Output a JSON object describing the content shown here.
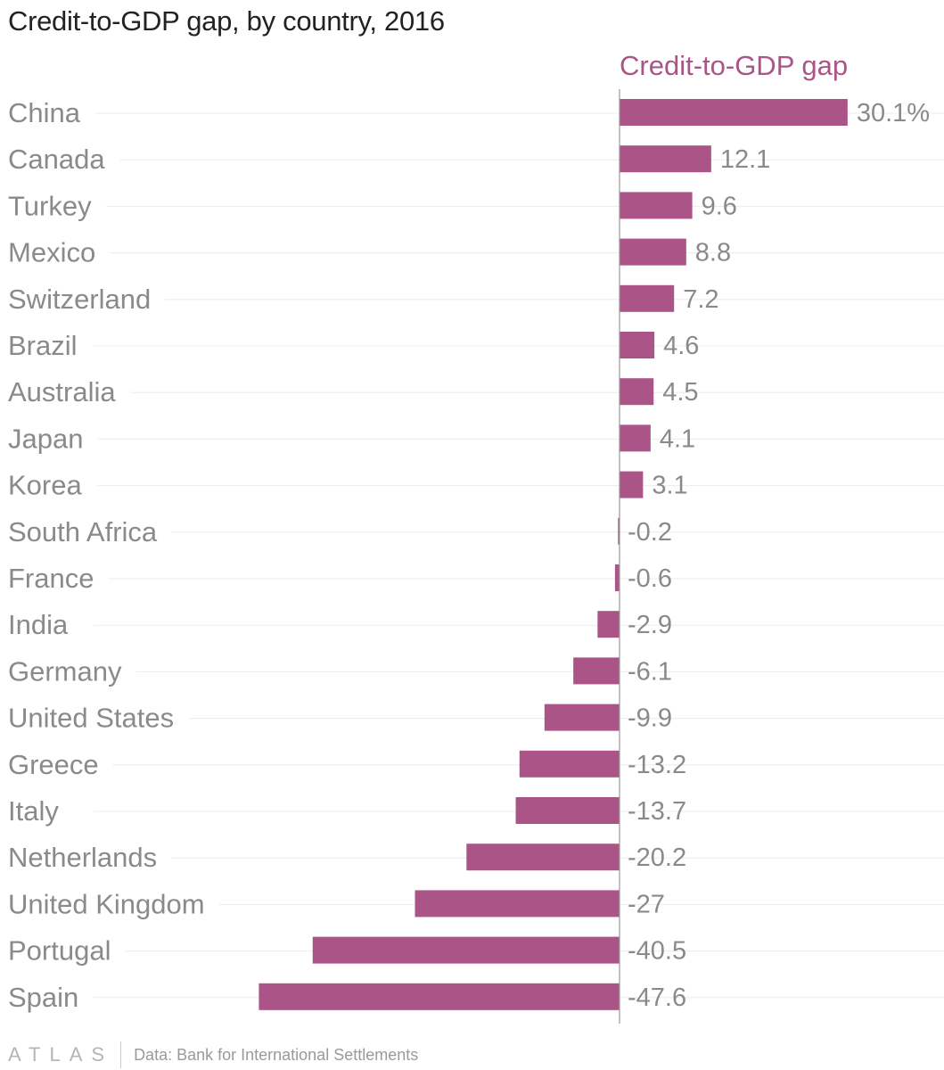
{
  "title": "Credit-to-GDP gap, by country, 2016",
  "footer": {
    "logo": "ATLAS",
    "source": "Data: Bank for International Settlements"
  },
  "colors": {
    "bar": "#ab5487",
    "label": "#8a8a8a",
    "grid": "#ececec",
    "axis": "#9a9a9a"
  },
  "chart_data": {
    "type": "bar",
    "orientation": "horizontal",
    "grid": true,
    "series": [
      {
        "name": "Credit-to-GDP gap",
        "values": [
          30.1,
          12.1,
          9.6,
          8.8,
          7.2,
          4.6,
          4.5,
          4.1,
          3.1,
          -0.2,
          -0.6,
          -2.9,
          -6.1,
          -9.9,
          -13.2,
          -13.7,
          -20.2,
          -27,
          -40.5,
          -47.6
        ]
      }
    ],
    "categories": [
      "China",
      "Canada",
      "Turkey",
      "Mexico",
      "Switzerland",
      "Brazil",
      "Australia",
      "Japan",
      "Korea",
      "South Africa",
      "France",
      "India",
      "Germany",
      "United States",
      "Greece",
      "Italy",
      "Netherlands",
      "United Kingdom",
      "Portugal",
      "Spain"
    ],
    "value_labels": [
      "30.1%",
      "12.1",
      "9.6",
      "8.8",
      "7.2",
      "4.6",
      "4.5",
      "4.1",
      "3.1",
      "-0.2",
      "-0.6",
      "-2.9",
      "-6.1",
      "-9.9",
      "-13.2",
      "-13.7",
      "-20.2",
      "-27",
      "-40.5",
      "-47.6"
    ]
  }
}
